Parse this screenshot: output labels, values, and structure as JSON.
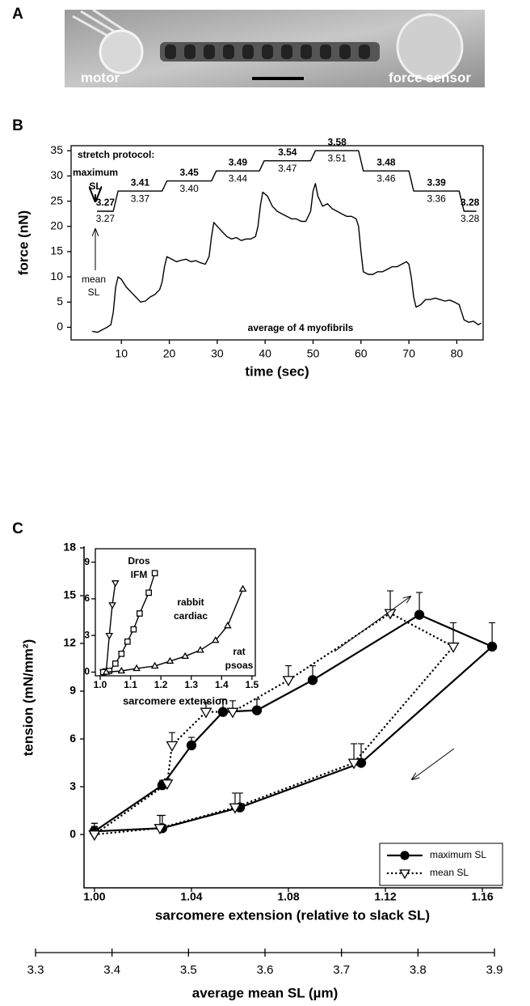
{
  "panel_a": {
    "label": "A",
    "left_text": "motor",
    "right_text": "force sensor"
  },
  "chart_data": [
    {
      "type": "line",
      "panel_label": "B",
      "xlabel": "time (sec)",
      "ylabel": "force (nN)",
      "xlim": [
        -0.5,
        85.5
      ],
      "ylim": [
        -2.5,
        36
      ],
      "xticks": [
        10,
        20,
        30,
        40,
        50,
        60,
        70,
        80
      ],
      "yticks": [
        0,
        5,
        10,
        15,
        20,
        25,
        30,
        35
      ],
      "annotations": {
        "protocol": "stretch protocol:",
        "max_label": "maximum SL",
        "mean_label": "mean SL",
        "note": "average of 4 myofibrils"
      },
      "series": [
        {
          "color": "#000000",
          "x": [
            4,
            5,
            6,
            7,
            7.8,
            8.3,
            8.8,
            9.3,
            10,
            11,
            12,
            13,
            14,
            15,
            16,
            17,
            18,
            18.5,
            19,
            19.5,
            20.5,
            21.5,
            22.5,
            23.5,
            24.5,
            25.5,
            26.5,
            27.5,
            28.3,
            28.8,
            29.3,
            30,
            31,
            32,
            33,
            34,
            35,
            36,
            37,
            38,
            38.5,
            39,
            39.5,
            40.5,
            41.5,
            42.5,
            43.5,
            44.5,
            45.5,
            46.5,
            47.5,
            48.5,
            49.5,
            50,
            50.5,
            51,
            52,
            53,
            54,
            55,
            56,
            57,
            58,
            59,
            59.5,
            60,
            60.5,
            61.5,
            62.5,
            63.5,
            64.5,
            65.5,
            66.5,
            67.5,
            68.5,
            69.5,
            70,
            70.5,
            71,
            71.5,
            72.5,
            73.5,
            74.5,
            75.5,
            76.5,
            77.5,
            78.5,
            79.5,
            80.5,
            81,
            81.5,
            82.5,
            83.5,
            84.5,
            85
          ],
          "values": [
            -0.8,
            -1,
            -0.5,
            0,
            0.5,
            3,
            8,
            10,
            9.5,
            8,
            7,
            6,
            5,
            5.2,
            6,
            6.5,
            7.5,
            9,
            12,
            14,
            13.5,
            13,
            13.3,
            13.5,
            13,
            13.2,
            12.8,
            12.5,
            14,
            18,
            20.8,
            20,
            19,
            18,
            17.5,
            17.8,
            17.2,
            17.5,
            17.5,
            18,
            20,
            24,
            26.8,
            26,
            24,
            23,
            22.5,
            22,
            21.5,
            21.5,
            21,
            21,
            23,
            27,
            28.5,
            26,
            24,
            24.5,
            23.5,
            23,
            22.5,
            22,
            22,
            21.5,
            20,
            15,
            11,
            10.5,
            10.5,
            11,
            11,
            11.5,
            12,
            12,
            12.5,
            13,
            12.5,
            10,
            6,
            4,
            4.5,
            5.5,
            5.5,
            5.8,
            5.5,
            5.2,
            5.4,
            5,
            4.5,
            3,
            1.5,
            1,
            1.2,
            0.5,
            0.8
          ]
        },
        {
          "color": "#000000",
          "x": [
            5,
            8.3,
            9.3,
            18.5,
            19.5,
            28.8,
            29.8,
            38.8,
            39.8,
            49.5,
            50.5,
            59.5,
            60.5,
            70,
            71,
            80.5,
            81.5,
            84
          ],
          "values": [
            23,
            23,
            27,
            27,
            29,
            29,
            31,
            31,
            33,
            33,
            35,
            35,
            31,
            31,
            27,
            27,
            23,
            23
          ]
        }
      ],
      "step_labels": [
        {
          "max": "3.27",
          "mean": "3.27"
        },
        {
          "max": "3.41",
          "mean": "3.37"
        },
        {
          "max": "3.45",
          "mean": "3.40"
        },
        {
          "max": "3.49",
          "mean": "3.44"
        },
        {
          "max": "3.54",
          "mean": "3.47"
        },
        {
          "max": "3.58",
          "mean": "3.51"
        },
        {
          "max": "3.48",
          "mean": "3.46"
        },
        {
          "max": "3.39",
          "mean": "3.36"
        },
        {
          "max": "3.28",
          "mean": "3.28"
        }
      ]
    },
    {
      "type": "line",
      "panel_label": "C",
      "xlabel": "sarcomere extension (relative to slack SL)",
      "ylabel": "tension (mN/mm²)",
      "xlim": [
        0.9957,
        1.1683
      ],
      "ylim": [
        -3.35,
        18.1
      ],
      "xticks": [
        {
          "value": 1,
          "label": "1.00"
        },
        1.04,
        1.08,
        1.12,
        1.16
      ],
      "yticks": [
        0,
        3,
        6,
        9,
        12,
        15,
        18
      ],
      "legend": "lower right",
      "x2label": "average mean SL (µm)",
      "x2lim": [
        3.3,
        3.9
      ],
      "x2ticks": [
        3.3,
        3.4,
        3.5,
        3.6,
        3.7,
        3.8,
        3.9
      ],
      "series": [
        {
          "name": "maximum SL",
          "color": "#000000",
          "marker": "circle",
          "line_style": "solid",
          "x": [
            1.0,
            1.028,
            1.04,
            1.053,
            1.067,
            1.09,
            1.134,
            1.164,
            1.11,
            1.06,
            1.028,
            1.0
          ],
          "values": [
            0.2,
            3.1,
            5.6,
            7.7,
            7.8,
            9.7,
            13.8,
            11.8,
            4.5,
            1.7,
            0.4,
            0.2
          ],
          "errors": [
            0.5,
            0.3,
            0.5,
            0.8,
            0.7,
            0.9,
            1.4,
            1.5,
            1.2,
            0.9,
            0.8,
            0.5
          ]
        },
        {
          "name": "mean SL",
          "color": "#000000",
          "marker": "triangle-down",
          "line_style": "dotted",
          "x": [
            1.0,
            1.03,
            1.032,
            1.046,
            1.057,
            1.08,
            1.122,
            1.148,
            1.107,
            1.058,
            1.027,
            1.0
          ],
          "values": [
            0,
            3.2,
            5.6,
            7.7,
            7.7,
            9.7,
            13.9,
            11.8,
            4.5,
            1.7,
            0.4,
            0
          ],
          "errors": [
            0.5,
            0.3,
            0.8,
            0.6,
            0.7,
            0.9,
            1.4,
            1.5,
            1.2,
            0.9,
            0.8,
            0.5
          ]
        }
      ]
    },
    {
      "type": "line",
      "xlabel": "sarcomere extension",
      "xlim": [
        0.984,
        1.511
      ],
      "ylim": [
        -0.3,
        10.1
      ],
      "xticks": [
        {
          "value": 1,
          "label": "1.0"
        },
        1.1,
        1.2,
        1.3,
        1.4,
        1.5
      ],
      "yticks": [
        0,
        3,
        6,
        9
      ],
      "series": [
        {
          "name": "Dros IFM",
          "color": "#000000",
          "marker": "triangle-down",
          "line_style": "solid",
          "x": [
            1.01,
            1.02,
            1.03,
            1.04,
            1.05
          ],
          "values": [
            0,
            0.1,
            3,
            5.5,
            7.3
          ]
        },
        {
          "name": "rabbit cardiac",
          "color": "#000000",
          "marker": "square",
          "line_style": "solid",
          "x": [
            1.01,
            1.03,
            1.05,
            1.07,
            1.09,
            1.11,
            1.13,
            1.16,
            1.18
          ],
          "values": [
            0,
            0.1,
            0.7,
            1.5,
            2.5,
            3.5,
            4.8,
            6.5,
            8.1
          ]
        },
        {
          "name": "rat psoas",
          "color": "#000000",
          "marker": "triangle-up",
          "line_style": "solid",
          "x": [
            1.02,
            1.07,
            1.12,
            1.18,
            1.23,
            1.28,
            1.33,
            1.38,
            1.42,
            1.47
          ],
          "values": [
            0,
            0.1,
            0.3,
            0.5,
            0.9,
            1.3,
            1.8,
            2.6,
            3.8,
            6.8
          ]
        }
      ]
    }
  ]
}
